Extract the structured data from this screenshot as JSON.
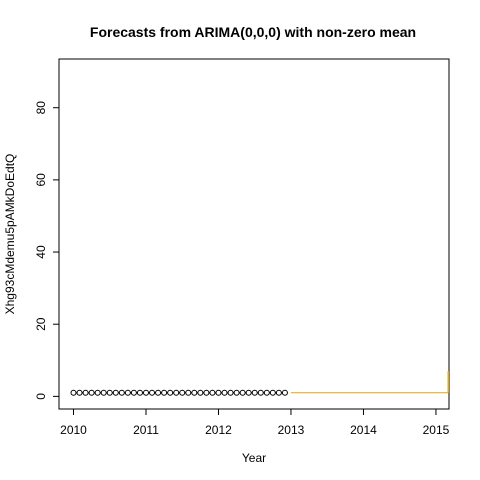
{
  "chart_data": {
    "type": "line",
    "title": "Forecasts from ARIMA(0,0,0) with non-zero mean",
    "xlabel": "Year",
    "ylabel": "Xhg93cMdemu5pAMkDoEdtQ",
    "xlim": [
      2009.8,
      2015.18
    ],
    "ylim": [
      -3.5,
      93.5
    ],
    "x_ticks": [
      2010,
      2011,
      2012,
      2013,
      2014,
      2015
    ],
    "y_ticks": [
      0,
      20,
      40,
      60,
      80
    ],
    "grid": false,
    "legend": "none",
    "observed": {
      "start": 2010,
      "frequency": 12,
      "count": 36,
      "value": 1,
      "color": "#000000",
      "marker": "open-circle"
    },
    "forecast": {
      "x": [
        2013,
        2015.17
      ],
      "mean": [
        1,
        1
      ],
      "interval_end_x": 2015.17,
      "interval_upper": 7,
      "color": "#e0a60c"
    }
  }
}
